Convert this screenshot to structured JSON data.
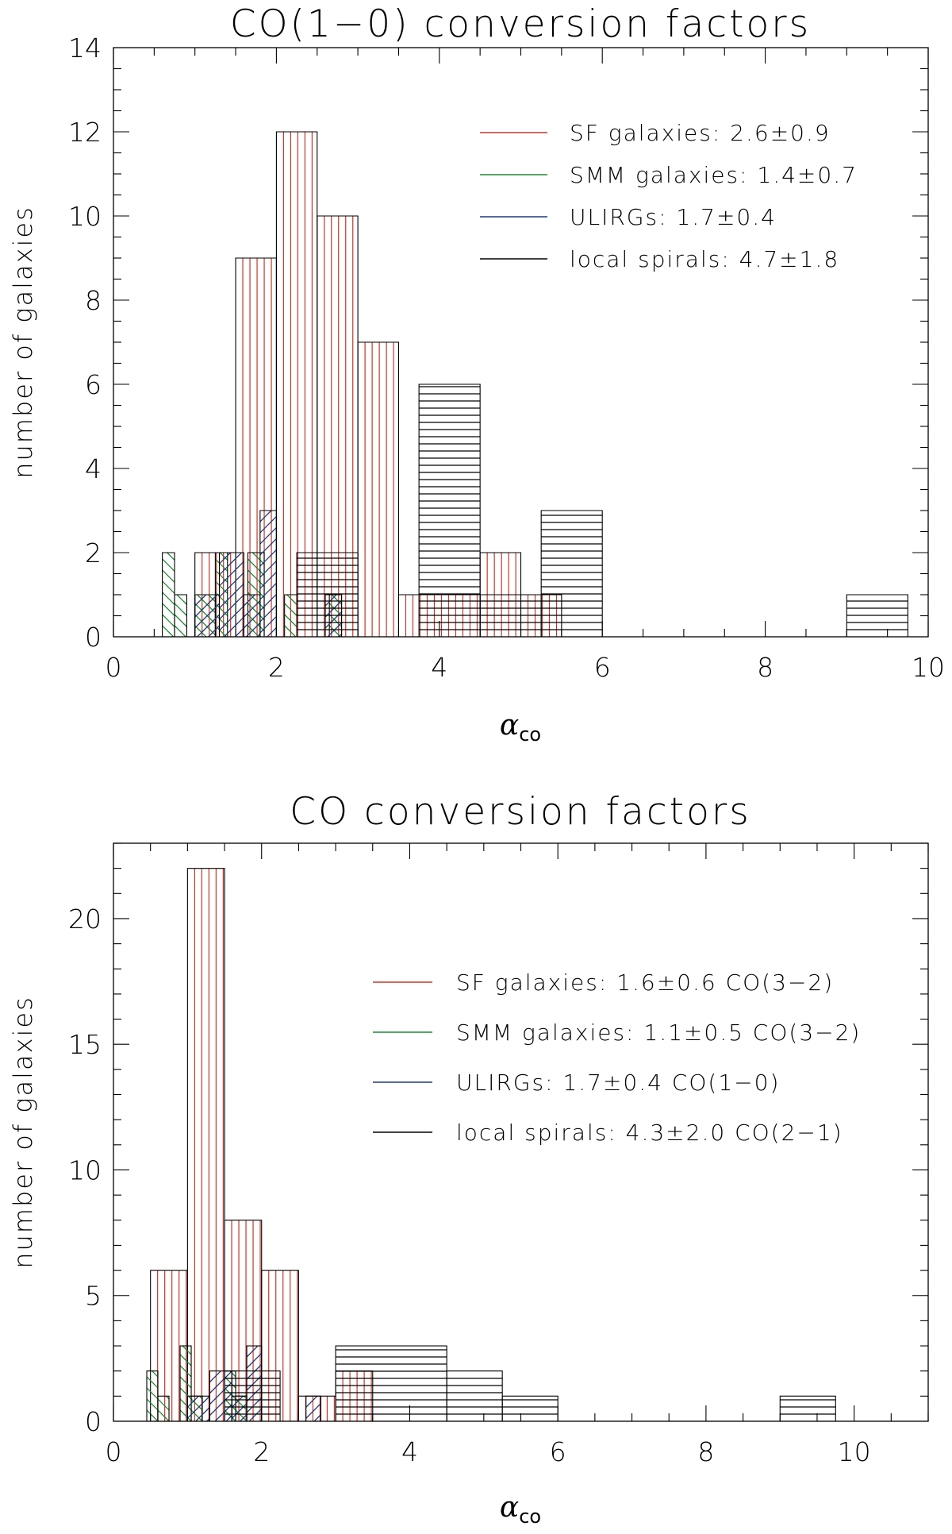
{
  "chart_data": [
    {
      "type": "bar",
      "title": "CO(1−0) conversion factors",
      "xlabel": "α",
      "xlabel_sub": "co",
      "ylabel": "number of galaxies",
      "xlim": [
        0,
        10
      ],
      "ylim": [
        0,
        14
      ],
      "xticks": [
        0,
        2,
        4,
        6,
        8,
        10
      ],
      "xtick_labels": [
        "0",
        "2",
        "4",
        "6",
        "8",
        "10"
      ],
      "yticks": [
        0,
        2,
        4,
        6,
        8,
        10,
        12,
        14
      ],
      "ytick_labels": [
        "0",
        "2",
        "4",
        "6",
        "8",
        "10",
        "12",
        "14"
      ],
      "x_minor_step": 0.5,
      "y_minor_step": 0.5,
      "legend_position": "top-right",
      "series": [
        {
          "name": "SF galaxies: 2.6±0.9",
          "color": "#c0392b",
          "hatch": "vertical",
          "bins": [
            [
              1.0,
              1.5,
              2
            ],
            [
              1.5,
              2.0,
              9
            ],
            [
              2.0,
              2.5,
              12
            ],
            [
              2.5,
              3.0,
              10
            ],
            [
              3.0,
              3.5,
              7
            ],
            [
              3.5,
              4.5,
              1
            ],
            [
              4.5,
              5.0,
              2
            ],
            [
              5.0,
              5.5,
              1
            ]
          ]
        },
        {
          "name": "SMM galaxies: 1.4±0.7",
          "color": "#1e8a35",
          "hatch": "diag-down",
          "bins": [
            [
              0.6,
              0.75,
              2
            ],
            [
              0.75,
              0.9,
              1
            ],
            [
              1.0,
              1.25,
              1
            ],
            [
              1.25,
              1.4,
              2
            ],
            [
              1.65,
              1.85,
              2
            ],
            [
              2.1,
              2.25,
              1
            ],
            [
              2.65,
              2.8,
              1
            ]
          ]
        },
        {
          "name": "ULIRGs: 1.7±0.4",
          "color": "#1f3a7a",
          "hatch": "diag-up",
          "bins": [
            [
              1.0,
              1.3,
              1
            ],
            [
              1.3,
              1.6,
              2
            ],
            [
              1.6,
              1.8,
              1
            ],
            [
              1.8,
              2.0,
              3
            ],
            [
              2.6,
              2.8,
              1
            ]
          ]
        },
        {
          "name": "local spirals: 4.7±1.8",
          "color": "#000000",
          "hatch": "horizontal",
          "bins": [
            [
              2.25,
              3.0,
              2
            ],
            [
              3.75,
              4.5,
              6
            ],
            [
              4.5,
              5.25,
              1
            ],
            [
              5.25,
              6.0,
              3
            ],
            [
              9.0,
              9.75,
              1
            ]
          ]
        }
      ]
    },
    {
      "type": "bar",
      "title": "CO conversion factors",
      "xlabel": "α",
      "xlabel_sub": "co",
      "ylabel": "number of galaxies",
      "xlim": [
        0,
        11
      ],
      "ylim": [
        0,
        23
      ],
      "xticks": [
        0,
        2,
        4,
        6,
        8,
        10
      ],
      "xtick_labels": [
        "0",
        "2",
        "4",
        "6",
        "8",
        "10"
      ],
      "yticks": [
        0,
        5,
        10,
        15,
        20
      ],
      "ytick_labels": [
        "0",
        "5",
        "10",
        "15",
        "20"
      ],
      "x_minor_step": 0.5,
      "y_minor_step": 1,
      "legend_position": "right",
      "series": [
        {
          "name": "SF galaxies: 1.6±0.6  CO(3−2)",
          "color": "#c0392b",
          "hatch": "vertical",
          "bins": [
            [
              0.5,
              1.0,
              6
            ],
            [
              1.0,
              1.5,
              22
            ],
            [
              1.5,
              2.0,
              8
            ],
            [
              2.0,
              2.5,
              6
            ],
            [
              2.5,
              3.0,
              1
            ],
            [
              3.0,
              3.5,
              2
            ]
          ]
        },
        {
          "name": "SMM galaxies: 1.1±0.5 CO(3−2)",
          "color": "#1e8a35",
          "hatch": "diag-down",
          "bins": [
            [
              0.45,
              0.6,
              2
            ],
            [
              0.6,
              0.75,
              1
            ],
            [
              0.9,
              1.05,
              3
            ],
            [
              1.05,
              1.2,
              1
            ],
            [
              1.5,
              1.65,
              2
            ],
            [
              1.65,
              1.8,
              1
            ]
          ]
        },
        {
          "name": "ULIRGs: 1.7±0.4  CO(1−0)",
          "color": "#1f3a7a",
          "hatch": "diag-up",
          "bins": [
            [
              1.0,
              1.3,
              1
            ],
            [
              1.3,
              1.6,
              2
            ],
            [
              1.6,
              1.8,
              1
            ],
            [
              1.8,
              2.0,
              3
            ],
            [
              2.6,
              2.8,
              1
            ]
          ]
        },
        {
          "name": "local spirals: 4.3±2.0  CO(2−1)",
          "color": "#000000",
          "hatch": "horizontal",
          "bins": [
            [
              1.5,
              2.25,
              2
            ],
            [
              3.0,
              4.5,
              3
            ],
            [
              4.5,
              5.25,
              2
            ],
            [
              5.25,
              6.0,
              1
            ],
            [
              9.0,
              9.75,
              1
            ]
          ]
        }
      ]
    }
  ]
}
